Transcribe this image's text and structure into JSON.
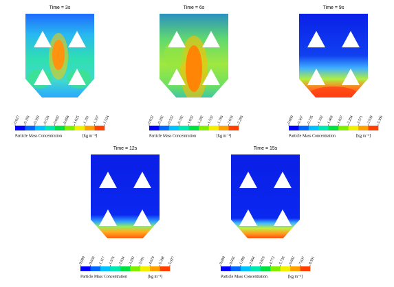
{
  "panels": [
    {
      "title": "Time = 3s",
      "ticks": [
        "0.027",
        "0.193",
        "0.359",
        "0.526",
        "0.692",
        "0.858",
        "1.025",
        "1.191",
        "1.357",
        "1.524"
      ],
      "label": "Particle Mass Concentration",
      "unit": "[kg m⁻³]"
    },
    {
      "title": "Time = 6s",
      "ticks": [
        "0.032",
        "0.282",
        "0.532",
        "0.782",
        "1.032",
        "1.282",
        "1.532",
        "1.783",
        "2.033",
        "2.283"
      ],
      "label": "Particle Mass Concentration",
      "unit": "[kg m⁻³]"
    },
    {
      "title": "Time = 9s",
      "ticks": [
        "0.000",
        "0.367",
        "0.735",
        "1.102",
        "1.469",
        "1.837",
        "2.204",
        "2.571",
        "2.939",
        "3.306"
      ],
      "label": "Particle Mass Concentration",
      "unit": "[kg m⁻³]"
    },
    {
      "title": "Time = 12s",
      "ticks": [
        "0.000",
        "0.659",
        "1.317",
        "1.976",
        "2.634",
        "3.293",
        "3.951",
        "4.610",
        "5.268",
        "5.927"
      ],
      "label": "Particle Mass Concentration",
      "unit": "[kg m⁻³]"
    },
    {
      "title": "Time = 15s",
      "ticks": [
        "0.000",
        "0.955",
        "1.909",
        "2.864",
        "3.819",
        "4.773",
        "5.728",
        "6.682",
        "7.637",
        "8.591"
      ],
      "label": "Particle Mass Concentration",
      "unit": "[kg m⁻³]"
    }
  ]
}
